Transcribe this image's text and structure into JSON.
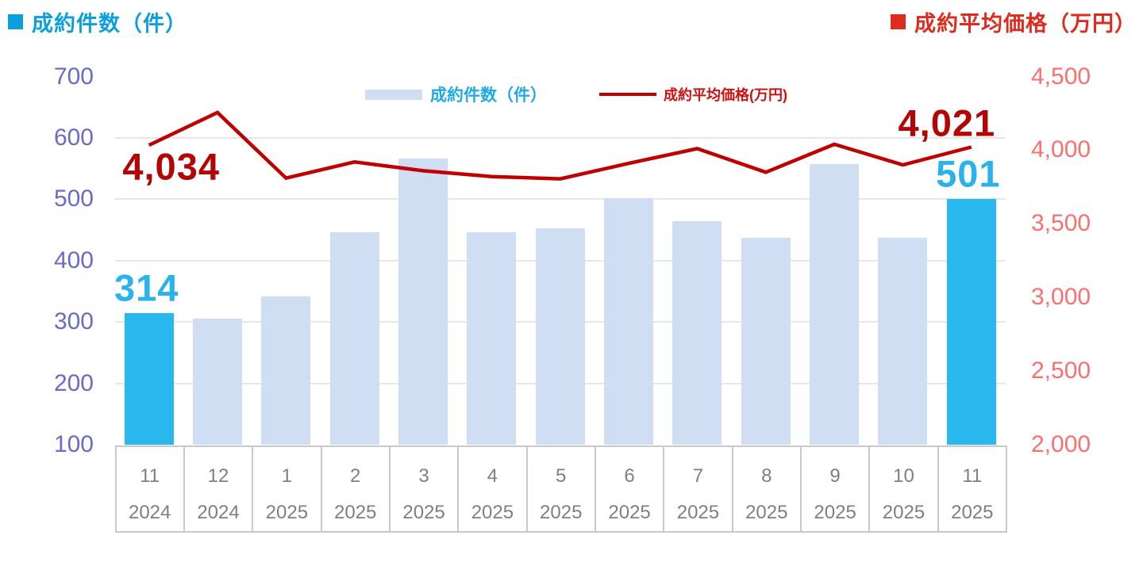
{
  "titles": {
    "left": "成約件数（件）",
    "right": "成約平均価格（万円）"
  },
  "legend": {
    "bar": "成約件数（件）",
    "line": "成約平均価格(万円)"
  },
  "colors": {
    "bar_normal": "#CFDEF3",
    "bar_highlight": "#29B8EE",
    "line": "#C00000",
    "label_cyan": "#29B3EA",
    "label_red": "#B40505",
    "title_left": "#0C9FDD",
    "title_right": "#DD2B1E",
    "axis_left_ticks": "#6A6AC9",
    "axis_right_ticks": "#F8716F",
    "x_labels": "#7F7F7F",
    "table_border": "#C9C9C9",
    "gridline": "#E7E7E7"
  },
  "chart_data": {
    "type": "combo",
    "categories_month": [
      "11",
      "12",
      "1",
      "2",
      "3",
      "4",
      "5",
      "6",
      "7",
      "8",
      "9",
      "10",
      "11"
    ],
    "categories_year": [
      "2024",
      "2024",
      "2025",
      "2025",
      "2025",
      "2025",
      "2025",
      "2025",
      "2025",
      "2025",
      "2025",
      "2025",
      "2025"
    ],
    "series": [
      {
        "name": "成約件数（件）",
        "kind": "bar",
        "axis": "left",
        "values": [
          314,
          305,
          341,
          446,
          566,
          446,
          452,
          502,
          464,
          437,
          557,
          437,
          501
        ],
        "highlighted_indices": [
          0,
          12
        ]
      },
      {
        "name": "成約平均価格(万円)",
        "kind": "line",
        "axis": "right",
        "values": [
          4034,
          4255,
          3810,
          3920,
          3860,
          3820,
          3805,
          3910,
          4010,
          3850,
          4040,
          3900,
          4021
        ]
      }
    ],
    "left_axis": {
      "min": 100,
      "max": 700,
      "tick_labels": [
        "700",
        "600",
        "500",
        "400",
        "300",
        "200",
        "100"
      ]
    },
    "right_axis": {
      "min": 2000,
      "max": 4500,
      "tick_labels": [
        "4,500",
        "4,000",
        "3,500",
        "3,000",
        "2,500",
        "2,000"
      ]
    },
    "data_labels": [
      {
        "series": "bar",
        "index": 0,
        "text": "314"
      },
      {
        "series": "line",
        "index": 0,
        "text": "4,034"
      },
      {
        "series": "line",
        "index": 12,
        "text": "4,021"
      },
      {
        "series": "bar",
        "index": 12,
        "text": "501"
      }
    ],
    "gridlines": true,
    "legend_position": "top-center-inside"
  }
}
